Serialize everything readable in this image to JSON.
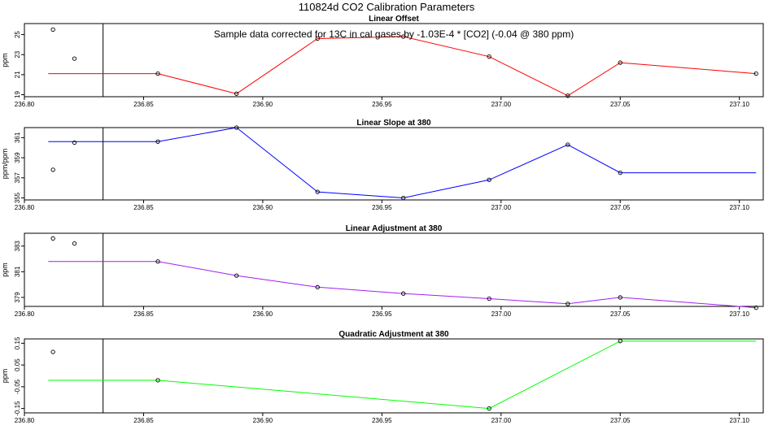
{
  "title": "110824d   CO2 Calibration Parameters",
  "annotation": "Sample data corrected for 13C in cal gases by -1.03E-4 * [CO2] (-0.04 @ 380 ppm)",
  "chart_data": [
    {
      "type": "line",
      "title": "Linear Offset",
      "ylabel": "ppm",
      "color": "#ff0000",
      "xlim": [
        236.8,
        237.11
      ],
      "xticks": [
        236.8,
        236.85,
        236.9,
        236.95,
        237.0,
        237.05,
        237.1
      ],
      "xtick_labels": [
        "236.80",
        "236.85",
        "236.90",
        "236.95",
        "237.00",
        "237.05",
        "237.10"
      ],
      "ylim": [
        18.8,
        26.1
      ],
      "yticks": [
        19,
        21,
        23,
        25
      ],
      "ytick_labels": [
        "19",
        "21",
        "23",
        "25"
      ],
      "vline_x": 236.833,
      "line": {
        "x": [
          236.81,
          236.856,
          236.889,
          236.923,
          236.959,
          236.995,
          237.028,
          237.05,
          237.107
        ],
        "y": [
          21.1,
          21.1,
          19.1,
          24.6,
          24.8,
          22.8,
          18.9,
          22.2,
          21.1
        ]
      },
      "points": {
        "x": [
          236.812,
          236.821,
          236.856,
          236.889,
          236.923,
          236.959,
          236.995,
          237.028,
          237.05,
          237.107
        ],
        "y": [
          25.5,
          22.6,
          21.1,
          19.1,
          24.6,
          24.8,
          22.8,
          18.9,
          22.2,
          21.1
        ]
      }
    },
    {
      "type": "line",
      "title": "Linear Slope at 380",
      "ylabel": "ppm/ppm",
      "color": "#0000ff",
      "xlim": [
        236.8,
        237.11
      ],
      "xticks": [
        236.8,
        236.85,
        236.9,
        236.95,
        237.0,
        237.05,
        237.1
      ],
      "xtick_labels": [
        "236.80",
        "236.85",
        "236.90",
        "236.95",
        "237.00",
        "237.05",
        "237.10"
      ],
      "ylim": [
        354.8,
        362.0
      ],
      "yticks": [
        355,
        357,
        359,
        361
      ],
      "ytick_labels": [
        "355",
        "357",
        "359",
        "361"
      ],
      "vline_x": 236.833,
      "line": {
        "x": [
          236.81,
          236.856,
          236.889,
          236.923,
          236.959,
          236.995,
          237.028,
          237.05,
          237.107
        ],
        "y": [
          360.6,
          360.6,
          362.0,
          355.6,
          355.0,
          356.8,
          360.3,
          357.5,
          357.5
        ]
      },
      "points": {
        "x": [
          236.812,
          236.821,
          236.856,
          236.889,
          236.923,
          236.959,
          236.995,
          237.028,
          237.05
        ],
        "y": [
          357.8,
          360.5,
          360.6,
          362.0,
          355.6,
          355.0,
          356.8,
          360.3,
          357.5
        ]
      }
    },
    {
      "type": "line",
      "title": "Linear Adjustment at 380",
      "ylabel": "ppm",
      "color": "#a020f0",
      "xlim": [
        236.8,
        237.11
      ],
      "xticks": [
        236.8,
        236.85,
        236.9,
        236.95,
        237.0,
        237.05,
        237.1
      ],
      "xtick_labels": [
        "236.80",
        "236.85",
        "236.90",
        "236.95",
        "237.00",
        "237.05",
        "237.10"
      ],
      "ylim": [
        378.3,
        384.0
      ],
      "yticks": [
        379,
        381,
        383
      ],
      "ytick_labels": [
        "379",
        "381",
        "383"
      ],
      "vline_x": 236.833,
      "line": {
        "x": [
          236.81,
          236.856,
          236.889,
          236.923,
          236.959,
          236.995,
          237.028,
          237.05,
          237.107
        ],
        "y": [
          381.8,
          381.8,
          380.7,
          379.8,
          379.3,
          378.9,
          378.5,
          379.0,
          378.2
        ]
      },
      "points": {
        "x": [
          236.812,
          236.821,
          236.856,
          236.889,
          236.923,
          236.959,
          236.995,
          237.028,
          237.05,
          237.107
        ],
        "y": [
          383.6,
          383.2,
          381.8,
          380.7,
          379.8,
          379.3,
          378.9,
          378.5,
          379.0,
          378.2
        ]
      }
    },
    {
      "type": "line",
      "title": "Quadratic Adjustment at 380",
      "ylabel": "ppm",
      "color": "#00ff00",
      "xlim": [
        236.8,
        237.11
      ],
      "xticks": [
        236.8,
        236.85,
        236.9,
        236.95,
        237.0,
        237.05,
        237.1
      ],
      "xtick_labels": [
        "236.80",
        "236.85",
        "236.90",
        "236.95",
        "237.00",
        "237.05",
        "237.10"
      ],
      "ylim": [
        -0.17,
        0.17
      ],
      "yticks": [
        -0.15,
        -0.05,
        0.05,
        0.15
      ],
      "ytick_labels": [
        "-0.15",
        "-0.05",
        "0.05",
        "0.15"
      ],
      "vline_x": 236.833,
      "line": {
        "x": [
          236.81,
          236.856,
          236.995,
          237.05,
          237.107
        ],
        "y": [
          -0.02,
          -0.02,
          -0.15,
          0.16,
          0.16
        ]
      },
      "points": {
        "x": [
          236.812,
          236.856,
          236.995,
          237.05
        ],
        "y": [
          0.11,
          -0.02,
          -0.15,
          0.16
        ]
      }
    }
  ]
}
